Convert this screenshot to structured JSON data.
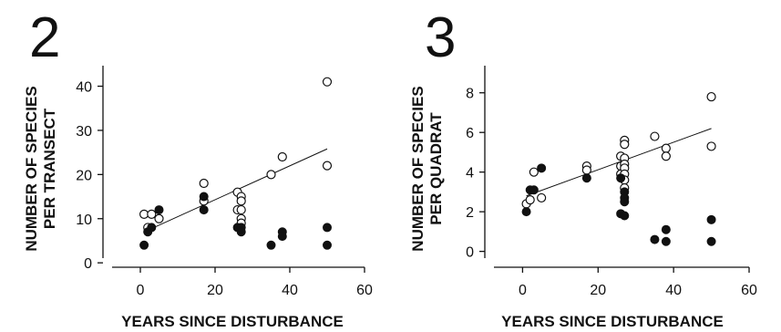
{
  "chart_data": [
    {
      "type": "scatter",
      "panel_label": "2",
      "title": "",
      "ylabel_lines": [
        "NUMBER OF SPECIES",
        "PER TRANSECT"
      ],
      "xlabel": "YEARS SINCE DISTURBANCE",
      "xlim": [
        -10,
        60
      ],
      "ylim": [
        -1,
        43
      ],
      "xticks": [
        0,
        20,
        40,
        60
      ],
      "yticks": [
        0,
        10,
        20,
        30,
        40
      ],
      "series": [
        {
          "marker": "open-circle",
          "points": [
            [
              1,
              11
            ],
            [
              2,
              8
            ],
            [
              3,
              11
            ],
            [
              5,
              10
            ],
            [
              17,
              18
            ],
            [
              17,
              14
            ],
            [
              26,
              16
            ],
            [
              26,
              12
            ],
            [
              27,
              15
            ],
            [
              27,
              14
            ],
            [
              27,
              12
            ],
            [
              27,
              10
            ],
            [
              27,
              9
            ],
            [
              35,
              20
            ],
            [
              38,
              24
            ],
            [
              50,
              41
            ],
            [
              50,
              22
            ]
          ]
        },
        {
          "marker": "filled-circle",
          "points": [
            [
              1,
              4
            ],
            [
              2,
              7
            ],
            [
              3,
              8
            ],
            [
              5,
              12
            ],
            [
              17,
              15
            ],
            [
              17,
              12
            ],
            [
              26,
              8
            ],
            [
              27,
              8
            ],
            [
              27,
              7
            ],
            [
              35,
              4
            ],
            [
              38,
              7
            ],
            [
              38,
              6
            ],
            [
              50,
              8
            ],
            [
              50,
              4
            ]
          ]
        }
      ],
      "trendline": [
        [
          1,
          7.0
        ],
        [
          50,
          25.8
        ]
      ]
    },
    {
      "type": "scatter",
      "panel_label": "3",
      "title": "",
      "ylabel_lines": [
        "NUMBER OF SPECIES",
        "PER QUADRAT"
      ],
      "xlabel": "YEARS SINCE DISTURBANCE",
      "xlim": [
        -10,
        60
      ],
      "ylim": [
        -0.8,
        9
      ],
      "xticks": [
        0,
        20,
        40,
        60
      ],
      "yticks": [
        0,
        2,
        4,
        6,
        8
      ],
      "series": [
        {
          "marker": "open-circle",
          "points": [
            [
              1,
              2.4
            ],
            [
              2,
              2.6
            ],
            [
              3,
              4.0
            ],
            [
              5,
              2.7
            ],
            [
              17,
              4.3
            ],
            [
              17,
              4.1
            ],
            [
              26,
              4.8
            ],
            [
              26,
              4.3
            ],
            [
              26,
              3.9
            ],
            [
              27,
              5.6
            ],
            [
              27,
              5.4
            ],
            [
              27,
              4.7
            ],
            [
              27,
              4.4
            ],
            [
              27,
              4.2
            ],
            [
              27,
              3.9
            ],
            [
              27,
              3.6
            ],
            [
              27,
              3.2
            ],
            [
              35,
              5.8
            ],
            [
              38,
              5.2
            ],
            [
              38,
              4.8
            ],
            [
              50,
              7.8
            ],
            [
              50,
              5.3
            ]
          ]
        },
        {
          "marker": "filled-circle",
          "points": [
            [
              1,
              2.0
            ],
            [
              2,
              3.1
            ],
            [
              3,
              3.1
            ],
            [
              5,
              4.2
            ],
            [
              17,
              3.7
            ],
            [
              26,
              3.7
            ],
            [
              26,
              1.9
            ],
            [
              27,
              3.0
            ],
            [
              27,
              2.7
            ],
            [
              27,
              2.5
            ],
            [
              27,
              1.8
            ],
            [
              35,
              0.6
            ],
            [
              38,
              1.1
            ],
            [
              38,
              0.5
            ],
            [
              50,
              1.6
            ],
            [
              50,
              0.5
            ]
          ]
        }
      ],
      "trendline": [
        [
          1,
          2.8
        ],
        [
          50,
          6.2
        ]
      ]
    }
  ]
}
